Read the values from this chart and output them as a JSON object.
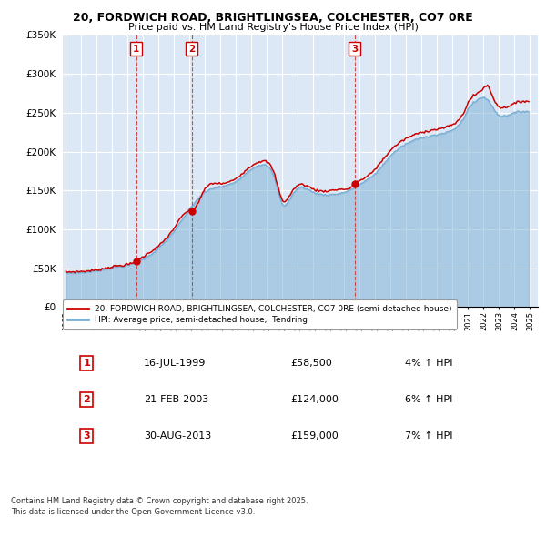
{
  "title_line1": "20, FORDWICH ROAD, BRIGHTLINGSEA, COLCHESTER, CO7 0RE",
  "title_line2": "Price paid vs. HM Land Registry's House Price Index (HPI)",
  "ylim": [
    0,
    350000
  ],
  "xlim_start": 1994.8,
  "xlim_end": 2025.5,
  "yticks": [
    0,
    50000,
    100000,
    150000,
    200000,
    250000,
    300000,
    350000
  ],
  "ytick_labels": [
    "£0",
    "£50K",
    "£100K",
    "£150K",
    "£200K",
    "£250K",
    "£300K",
    "£350K"
  ],
  "sale_dates": [
    1999.54,
    2003.13,
    2013.66
  ],
  "sale_prices": [
    58500,
    124000,
    159000
  ],
  "sale_labels": [
    "1",
    "2",
    "3"
  ],
  "sale_date_strs": [
    "16-JUL-1999",
    "21-FEB-2003",
    "30-AUG-2013"
  ],
  "sale_price_strs": [
    "£58,500",
    "£124,000",
    "£159,000"
  ],
  "sale_hpi_strs": [
    "4% ↑ HPI",
    "6% ↑ HPI",
    "7% ↑ HPI"
  ],
  "line_color_red": "#cc0000",
  "line_color_blue": "#7bafd4",
  "background_color": "#ffffff",
  "plot_bg_color": "#dce8f5",
  "grid_color": "#ffffff",
  "legend_line1": "20, FORDWICH ROAD, BRIGHTLINGSEA, COLCHESTER, CO7 0RE (semi-detached house)",
  "legend_line2": "HPI: Average price, semi-detached house,  Tendring",
  "footer": "Contains HM Land Registry data © Crown copyright and database right 2025.\nThis data is licensed under the Open Government Licence v3.0."
}
